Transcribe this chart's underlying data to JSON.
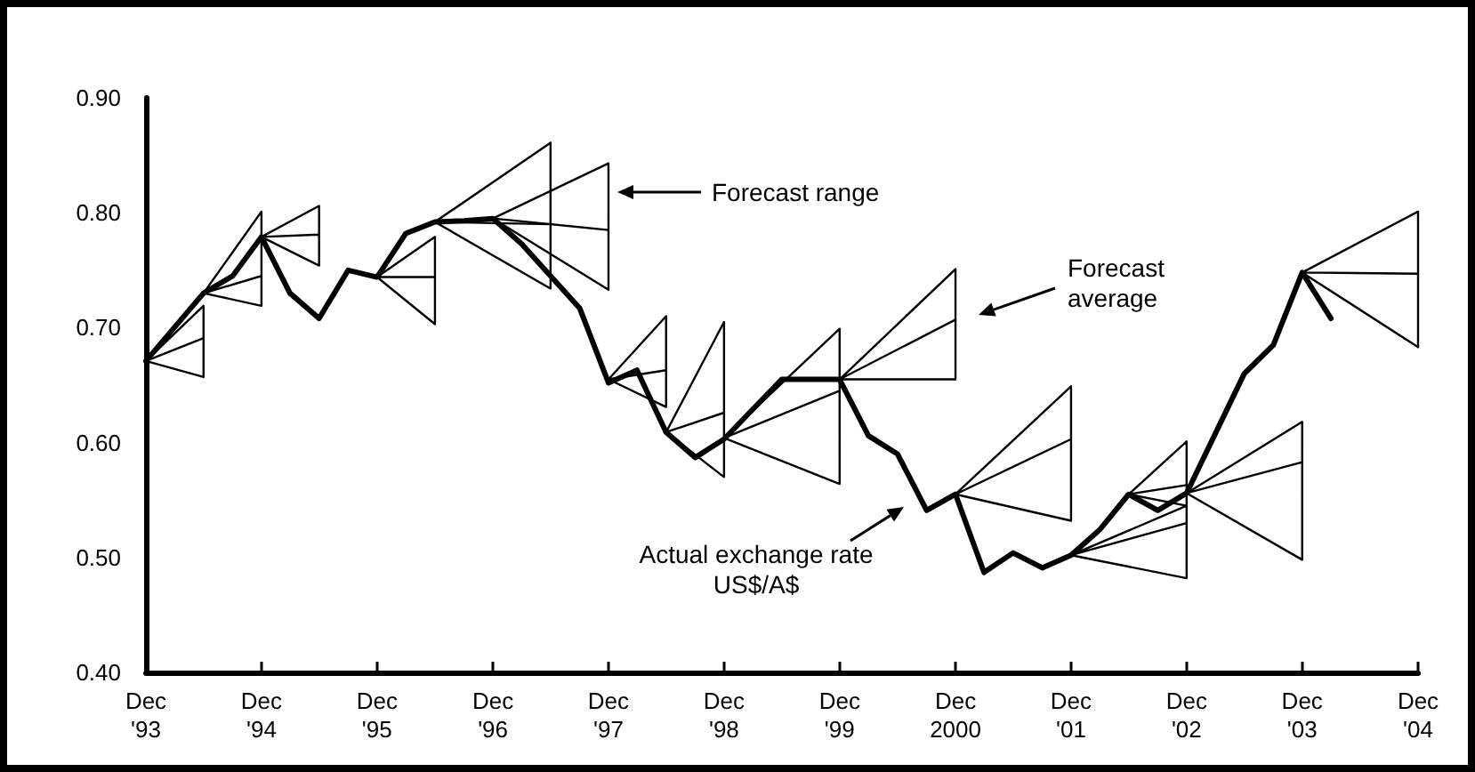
{
  "chart_data": {
    "type": "line",
    "series": [
      {
        "color": "#000000",
        "x": [
          "1993-12",
          "1994-06",
          "1994-09",
          "1994-12",
          "1995-03",
          "1995-06",
          "1995-09",
          "1995-12",
          "1996-03",
          "1996-06",
          "1996-09",
          "1996-12",
          "1997-03",
          "1997-09",
          "1997-12",
          "1998-03",
          "1998-06",
          "1998-09",
          "1998-12",
          "1999-06",
          "1999-12",
          "2000-03",
          "2000-06",
          "2000-09",
          "2000-12",
          "2001-03",
          "2001-06",
          "2001-09",
          "2001-12",
          "2002-03",
          "2002-06",
          "2002-09",
          "2002-12",
          "2003-06",
          "2003-09",
          "2003-12",
          "2004-03"
        ],
        "values": [
          0.671,
          0.73,
          0.745,
          0.779,
          0.73,
          0.708,
          0.75,
          0.744,
          0.782,
          0.792,
          0.793,
          0.795,
          0.773,
          0.717,
          0.652,
          0.663,
          0.609,
          0.587,
          0.603,
          0.655,
          0.655,
          0.606,
          0.59,
          0.541,
          0.555,
          0.487,
          0.504,
          0.491,
          0.502,
          0.524,
          0.555,
          0.541,
          0.556,
          0.66,
          0.685,
          0.748,
          0.708
        ]
      },
      {
        "color": "#000000",
        "x": [
          "1993-12",
          "1994-06",
          "1994-06",
          "1993-12",
          "1994-06"
        ],
        "values": [
          0.671,
          0.719,
          0.657,
          0.671,
          0.691
        ]
      },
      {
        "color": "#000000",
        "x": [
          "1994-06",
          "1994-12",
          "1994-12",
          "1994-06",
          "1994-12"
        ],
        "values": [
          0.73,
          0.801,
          0.719,
          0.73,
          0.745
        ]
      },
      {
        "color": "#000000",
        "x": [
          "1994-12",
          "1995-06",
          "1995-06",
          "1994-12",
          "1995-06"
        ],
        "values": [
          0.779,
          0.806,
          0.754,
          0.779,
          0.781
        ]
      },
      {
        "color": "#000000",
        "x": [
          "1995-12",
          "1996-06",
          "1996-06",
          "1995-12",
          "1996-06"
        ],
        "values": [
          0.744,
          0.779,
          0.703,
          0.744,
          0.744
        ]
      },
      {
        "color": "#000000",
        "x": [
          "1996-06",
          "1997-06",
          "1997-06",
          "1996-06",
          "1997-06"
        ],
        "values": [
          0.792,
          0.861,
          0.734,
          0.792,
          0.79
        ]
      },
      {
        "color": "#000000",
        "x": [
          "1996-12",
          "1997-12",
          "1997-12",
          "1996-12",
          "1997-12"
        ],
        "values": [
          0.795,
          0.843,
          0.733,
          0.795,
          0.785
        ]
      },
      {
        "color": "#000000",
        "x": [
          "1997-12",
          "1998-06",
          "1998-06",
          "1997-12",
          "1998-06"
        ],
        "values": [
          0.655,
          0.71,
          0.631,
          0.655,
          0.663
        ]
      },
      {
        "color": "#000000",
        "x": [
          "1998-06",
          "1998-12",
          "1998-12",
          "1998-06",
          "1998-12"
        ],
        "values": [
          0.609,
          0.705,
          0.57,
          0.609,
          0.626
        ]
      },
      {
        "color": "#000000",
        "x": [
          "1998-12",
          "1999-12",
          "1999-12",
          "1998-12",
          "1999-12"
        ],
        "values": [
          0.604,
          0.699,
          0.564,
          0.604,
          0.645
        ]
      },
      {
        "color": "#000000",
        "x": [
          "1999-12",
          "2000-12",
          "2000-12",
          "1999-12",
          "2000-12"
        ],
        "values": [
          0.655,
          0.751,
          0.655,
          0.655,
          0.707
        ]
      },
      {
        "color": "#000000",
        "x": [
          "2000-12",
          "2001-12",
          "2001-12",
          "2000-12",
          "2001-12"
        ],
        "values": [
          0.555,
          0.649,
          0.532,
          0.555,
          0.603
        ]
      },
      {
        "color": "#000000",
        "x": [
          "2001-12",
          "2002-12",
          "2002-12",
          "2001-12",
          "2002-12"
        ],
        "values": [
          0.502,
          0.545,
          0.482,
          0.502,
          0.53
        ]
      },
      {
        "color": "#000000",
        "x": [
          "2002-06",
          "2002-12",
          "2002-12",
          "2002-06",
          "2002-12"
        ],
        "values": [
          0.555,
          0.601,
          0.545,
          0.555,
          0.563
        ]
      },
      {
        "color": "#000000",
        "x": [
          "2002-12",
          "2003-12",
          "2003-12",
          "2002-12",
          "2003-12"
        ],
        "values": [
          0.556,
          0.618,
          0.498,
          0.556,
          0.583
        ]
      },
      {
        "color": "#000000",
        "x": [
          "2003-12",
          "2004-12",
          "2004-12",
          "2003-12",
          "2004-12"
        ],
        "values": [
          0.748,
          0.801,
          0.683,
          0.748,
          0.747
        ]
      }
    ],
    "xlim": [
      "1993-12",
      "2004-12"
    ],
    "xticks": [
      {
        "value": "1993-12",
        "label": "Dec '93"
      },
      {
        "value": "1994-12",
        "label": "Dec '94"
      },
      {
        "value": "1995-12",
        "label": "Dec '95"
      },
      {
        "value": "1996-12",
        "label": "Dec '96"
      },
      {
        "value": "1997-12",
        "label": "Dec '97"
      },
      {
        "value": "1998-12",
        "label": "Dec '98"
      },
      {
        "value": "1999-12",
        "label": "Dec '99"
      },
      {
        "value": "2000-12",
        "label": "Dec 2000"
      },
      {
        "value": "2001-12",
        "label": "Dec '01"
      },
      {
        "value": "2002-12",
        "label": "Dec '02"
      },
      {
        "value": "2003-12",
        "label": "Dec '03"
      },
      {
        "value": "2004-12",
        "label": "Dec '04"
      }
    ],
    "ylim": [
      0.4,
      0.9
    ],
    "yticks": [
      {
        "value": 0.4,
        "label": "0.40"
      },
      {
        "value": 0.5,
        "label": "0.50"
      },
      {
        "value": 0.6,
        "label": "0.60"
      },
      {
        "value": 0.7,
        "label": "0.70"
      },
      {
        "value": 0.8,
        "label": "0.80"
      },
      {
        "value": 0.9,
        "label": "0.90"
      }
    ],
    "annotations": [
      "Forecast range",
      "Forecast\naverage",
      "Actual exchange rate\nUS$/A$"
    ],
    "grid": false,
    "marker": "none",
    "line_style": "solid"
  }
}
